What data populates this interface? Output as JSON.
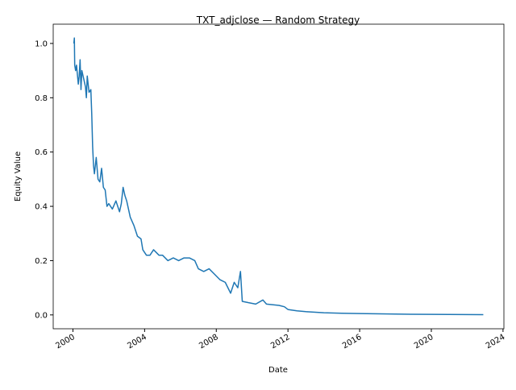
{
  "chart_data": {
    "type": "line",
    "title": "TXT_adjclose — Random Strategy",
    "x_label": "Date",
    "y_label": "Equity Value",
    "x": [
      2000.05,
      2000.08,
      2000.1,
      2000.15,
      2000.2,
      2000.3,
      2000.35,
      2000.4,
      2000.45,
      2000.5,
      2000.6,
      2000.7,
      2000.75,
      2000.8,
      2000.9,
      2001.0,
      2001.05,
      2001.1,
      2001.15,
      2001.2,
      2001.3,
      2001.4,
      2001.5,
      2001.6,
      2001.7,
      2001.8,
      2001.9,
      2002.0,
      2002.2,
      2002.4,
      2002.6,
      2002.7,
      2002.8,
      2002.9,
      2003.0,
      2003.2,
      2003.4,
      2003.6,
      2003.8,
      2003.9,
      2004.1,
      2004.3,
      2004.5,
      2004.8,
      2005.0,
      2005.3,
      2005.6,
      2005.9,
      2006.2,
      2006.5,
      2006.8,
      2007.0,
      2007.3,
      2007.6,
      2007.9,
      2008.2,
      2008.5,
      2008.8,
      2009.0,
      2009.2,
      2009.35,
      2009.45,
      2009.8,
      2010.2,
      2010.6,
      2010.8,
      2011.5,
      2011.8,
      2012.0,
      2012.5,
      2013.0,
      2014.0,
      2015.0,
      2016.0,
      2018.0,
      2020.0,
      2022.9
    ],
    "series": [
      {
        "name": "TXT_adjclose",
        "color": "#1f77b4",
        "values": [
          1.0,
          1.02,
          0.92,
          0.9,
          0.92,
          0.85,
          0.88,
          0.94,
          0.83,
          0.9,
          0.87,
          0.84,
          0.8,
          0.88,
          0.82,
          0.83,
          0.74,
          0.62,
          0.55,
          0.52,
          0.58,
          0.5,
          0.49,
          0.54,
          0.47,
          0.46,
          0.4,
          0.41,
          0.39,
          0.42,
          0.38,
          0.41,
          0.47,
          0.44,
          0.42,
          0.36,
          0.33,
          0.29,
          0.28,
          0.24,
          0.22,
          0.22,
          0.24,
          0.22,
          0.22,
          0.2,
          0.21,
          0.2,
          0.21,
          0.21,
          0.2,
          0.17,
          0.16,
          0.17,
          0.15,
          0.13,
          0.12,
          0.08,
          0.12,
          0.1,
          0.16,
          0.05,
          0.045,
          0.04,
          0.055,
          0.04,
          0.035,
          0.03,
          0.02,
          0.015,
          0.012,
          0.008,
          0.006,
          0.005,
          0.003,
          0.002,
          0.001
        ]
      }
    ],
    "xlim": [
      1998.9,
      2024.05
    ],
    "xticks": [
      2000,
      2004,
      2008,
      2012,
      2016,
      2020,
      2024
    ],
    "ylim": [
      -0.051,
      1.071
    ],
    "yticks": [
      {
        "value": 0,
        "label": "0.0"
      },
      0.2,
      0.4,
      0.6,
      0.8,
      {
        "value": 1,
        "label": "1.0"
      }
    ]
  }
}
